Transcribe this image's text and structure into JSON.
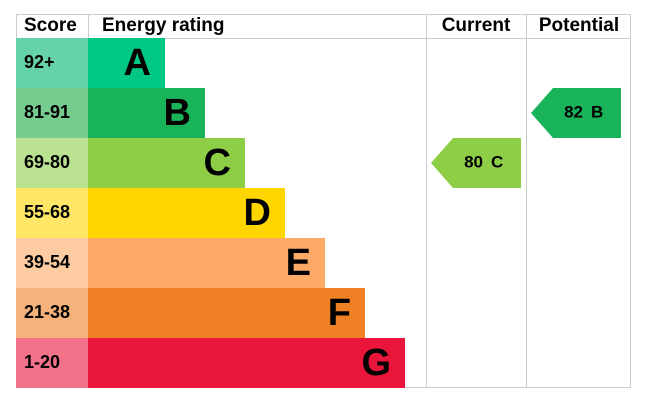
{
  "header": {
    "score": "Score",
    "rating": "Energy rating",
    "current": "Current",
    "potential": "Potential"
  },
  "bands": [
    {
      "score": "92+",
      "letter": "A",
      "color": "#00c781",
      "light": "#66d2a7"
    },
    {
      "score": "81-91",
      "letter": "B",
      "color": "#19b459",
      "light": "#75cc8e"
    },
    {
      "score": "69-80",
      "letter": "C",
      "color": "#8dce46",
      "light": "#bbe290"
    },
    {
      "score": "55-68",
      "letter": "D",
      "color": "#ffd500",
      "light": "#ffe666"
    },
    {
      "score": "39-54",
      "letter": "E",
      "color": "#fcaa65",
      "light": "#fdcca3"
    },
    {
      "score": "21-38",
      "letter": "F",
      "color": "#ef8023",
      "light": "#f5b37b"
    },
    {
      "score": "1-20",
      "letter": "G",
      "color": "#e9153b",
      "light": "#f27389"
    }
  ],
  "current": {
    "score": 80,
    "band": "C"
  },
  "potential": {
    "score": 82,
    "band": "B"
  }
}
